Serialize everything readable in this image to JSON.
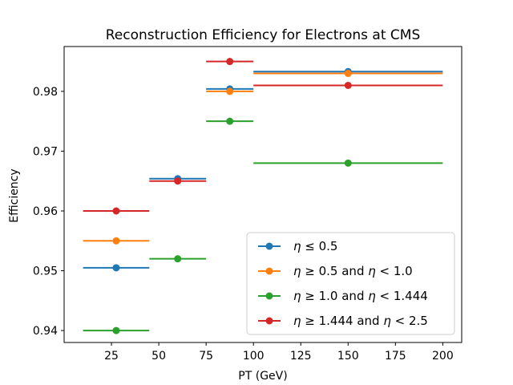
{
  "chart_data": {
    "type": "scatter",
    "title": "Reconstruction Efficiency for Electrons at CMS",
    "xlabel": "PT (GeV)",
    "ylabel": "Efficiency",
    "xlim": [
      0,
      210
    ],
    "ylim": [
      0.938,
      0.9875
    ],
    "xticks": [
      25,
      50,
      75,
      100,
      125,
      150,
      175,
      200
    ],
    "yticks": [
      0.94,
      0.95,
      0.96,
      0.97,
      0.98
    ],
    "ytick_labels": [
      "0.94",
      "0.95",
      "0.96",
      "0.97",
      "0.98"
    ],
    "grid": false,
    "legend_position": "lower-right",
    "series": [
      {
        "name": "η ≤ 0.5",
        "label_parts": [
          {
            "t": "η",
            "i": true
          },
          {
            "t": " ≤ 0.5",
            "i": false
          }
        ],
        "color": "#1f77b4",
        "points": [
          {
            "x": 27.5,
            "xlo": 10,
            "xhi": 45,
            "y": 0.9505
          },
          {
            "x": 87.5,
            "xlo": 75,
            "xhi": 100,
            "y": 0.9804
          },
          {
            "x": 150,
            "xlo": 100,
            "xhi": 200,
            "y": 0.9833
          }
        ]
      },
      {
        "name": "η ≥ 0.5 and η < 1.0",
        "label_parts": [
          {
            "t": "η",
            "i": true
          },
          {
            "t": " ≥ 0.5 and ",
            "i": false
          },
          {
            "t": "η",
            "i": true
          },
          {
            "t": " < 1.0",
            "i": false
          }
        ],
        "color": "#ff7f0e",
        "points": [
          {
            "x": 27.5,
            "xlo": 10,
            "xhi": 45,
            "y": 0.955
          },
          {
            "x": 87.5,
            "xlo": 75,
            "xhi": 100,
            "y": 0.98
          },
          {
            "x": 150,
            "xlo": 100,
            "xhi": 200,
            "y": 0.983
          }
        ]
      },
      {
        "name": "η ≥ 1.0 and η < 1.444",
        "label_parts": [
          {
            "t": "η",
            "i": true
          },
          {
            "t": " ≥ 1.0 and ",
            "i": false
          },
          {
            "t": "η",
            "i": true
          },
          {
            "t": " < 1.444",
            "i": false
          }
        ],
        "color": "#2ca02c",
        "points": [
          {
            "x": 27.5,
            "xlo": 10,
            "xhi": 45,
            "y": 0.94
          },
          {
            "x": 60,
            "xlo": 45,
            "xhi": 75,
            "y": 0.952
          },
          {
            "x": 87.5,
            "xlo": 75,
            "xhi": 100,
            "y": 0.975
          },
          {
            "x": 150,
            "xlo": 100,
            "xhi": 200,
            "y": 0.968
          }
        ]
      },
      {
        "name": "η ≥ 1.444 and η < 2.5",
        "label_parts": [
          {
            "t": "η",
            "i": true
          },
          {
            "t": " ≥ 1.444 and ",
            "i": false
          },
          {
            "t": "η",
            "i": true
          },
          {
            "t": " < 2.5",
            "i": false
          }
        ],
        "color": "#d62728",
        "points": [
          {
            "x": 27.5,
            "xlo": 10,
            "xhi": 45,
            "y": 0.96
          },
          {
            "x": 60,
            "xlo": 45,
            "xhi": 75,
            "y": 0.965
          },
          {
            "x": 87.5,
            "xlo": 75,
            "xhi": 100,
            "y": 0.985
          },
          {
            "x": 150,
            "xlo": 100,
            "xhi": 200,
            "y": 0.981
          }
        ]
      }
    ],
    "extra_points": [
      {
        "series": 0,
        "x": 60,
        "xlo": 45,
        "xhi": 75,
        "y": 0.9654
      }
    ]
  }
}
